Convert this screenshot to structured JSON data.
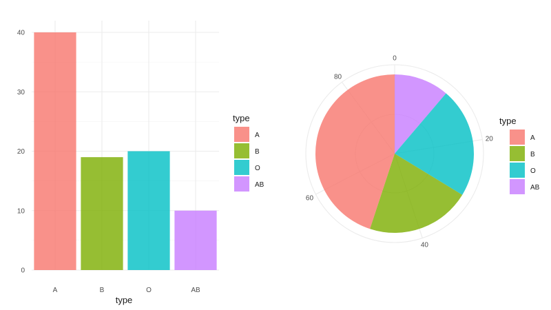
{
  "chart_data": [
    {
      "type": "bar",
      "categories": [
        "A",
        "B",
        "O",
        "AB"
      ],
      "values": [
        40,
        19,
        20,
        10
      ],
      "colors": [
        "#F8766D",
        "#7CAE00",
        "#00BFC4",
        "#C77CFF"
      ],
      "title": "",
      "xlabel": "type",
      "ylabel": "",
      "ylim": [
        0,
        40
      ],
      "yticks": [
        0,
        10,
        20,
        30,
        40
      ],
      "grid": true,
      "legend": {
        "title": "type",
        "position": "right",
        "entries": [
          "A",
          "B",
          "O",
          "AB"
        ]
      }
    },
    {
      "type": "pie",
      "categories": [
        "A",
        "B",
        "O",
        "AB"
      ],
      "values": [
        40,
        19,
        20,
        10
      ],
      "colors": [
        "#F8766D",
        "#7CAE00",
        "#00BFC4",
        "#C77CFF"
      ],
      "slice_order": [
        "AB",
        "O",
        "B",
        "A"
      ],
      "angle_axis_ticks": [
        0,
        20,
        40,
        60,
        80
      ],
      "total": 89,
      "title": "",
      "grid": true,
      "legend": {
        "title": "type",
        "position": "right",
        "entries": [
          "A",
          "B",
          "O",
          "AB"
        ]
      }
    }
  ]
}
